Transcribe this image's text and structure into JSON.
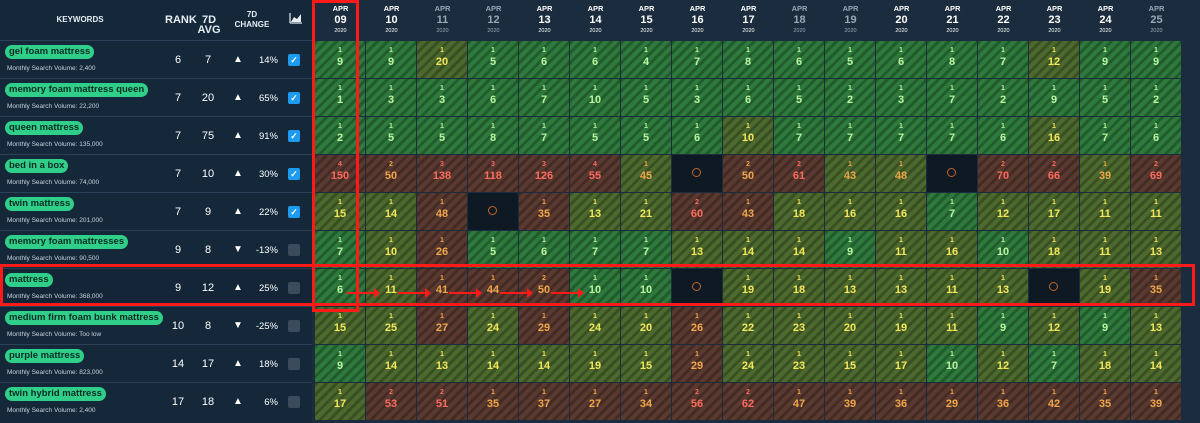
{
  "header": {
    "keywords": "KEYWORDS",
    "rank": "RANK",
    "avg": "7D AVG",
    "change": "7D CHANGE",
    "chart_icon": "chart-icon"
  },
  "msv_prefix": "Monthly Search Volume: ",
  "dates": [
    {
      "mo": "APR",
      "day": "09",
      "yr": "2020",
      "weekend": false
    },
    {
      "mo": "APR",
      "day": "10",
      "yr": "2020",
      "weekend": false
    },
    {
      "mo": "APR",
      "day": "11",
      "yr": "2020",
      "weekend": true
    },
    {
      "mo": "APR",
      "day": "12",
      "yr": "2020",
      "weekend": true
    },
    {
      "mo": "APR",
      "day": "13",
      "yr": "2020",
      "weekend": false
    },
    {
      "mo": "APR",
      "day": "14",
      "yr": "2020",
      "weekend": false
    },
    {
      "mo": "APR",
      "day": "15",
      "yr": "2020",
      "weekend": false
    },
    {
      "mo": "APR",
      "day": "16",
      "yr": "2020",
      "weekend": false
    },
    {
      "mo": "APR",
      "day": "17",
      "yr": "2020",
      "weekend": false
    },
    {
      "mo": "APR",
      "day": "18",
      "yr": "2020",
      "weekend": true
    },
    {
      "mo": "APR",
      "day": "19",
      "yr": "2020",
      "weekend": true
    },
    {
      "mo": "APR",
      "day": "20",
      "yr": "2020",
      "weekend": false
    },
    {
      "mo": "APR",
      "day": "21",
      "yr": "2020",
      "weekend": false
    },
    {
      "mo": "APR",
      "day": "22",
      "yr": "2020",
      "weekend": false
    },
    {
      "mo": "APR",
      "day": "23",
      "yr": "2020",
      "weekend": false
    },
    {
      "mo": "APR",
      "day": "24",
      "yr": "2020",
      "weekend": false
    },
    {
      "mo": "APR",
      "day": "25",
      "yr": "2020",
      "weekend": true
    }
  ],
  "keywords": [
    {
      "name": "gel foam mattress",
      "msv": "2,400",
      "rank": "6",
      "avg": "7",
      "dir": "up",
      "pct": "14%",
      "checked": true,
      "cells": [
        [
          "1",
          "9",
          "g",
          "g"
        ],
        [
          "1",
          "9",
          "g",
          "g"
        ],
        [
          "1",
          "20",
          "o",
          "y"
        ],
        [
          "1",
          "5",
          "g",
          "g"
        ],
        [
          "1",
          "6",
          "g",
          "g"
        ],
        [
          "1",
          "6",
          "g",
          "g"
        ],
        [
          "1",
          "4",
          "g",
          "g"
        ],
        [
          "1",
          "7",
          "g",
          "g"
        ],
        [
          "1",
          "8",
          "g",
          "g"
        ],
        [
          "1",
          "6",
          "g",
          "g"
        ],
        [
          "1",
          "5",
          "g",
          "g"
        ],
        [
          "1",
          "6",
          "g",
          "g"
        ],
        [
          "1",
          "8",
          "g",
          "g"
        ],
        [
          "1",
          "7",
          "g",
          "g"
        ],
        [
          "1",
          "12",
          "o",
          "y"
        ],
        [
          "1",
          "9",
          "g",
          "g"
        ],
        [
          "1",
          "9",
          "g",
          "g"
        ]
      ]
    },
    {
      "name": "memory foam mattress queen",
      "msv": "22,200",
      "rank": "7",
      "avg": "20",
      "dir": "up",
      "pct": "65%",
      "checked": true,
      "cells": [
        [
          "1",
          "1",
          "g",
          "g"
        ],
        [
          "1",
          "3",
          "g",
          "g"
        ],
        [
          "1",
          "3",
          "g",
          "g"
        ],
        [
          "1",
          "6",
          "g",
          "g"
        ],
        [
          "1",
          "7",
          "g",
          "g"
        ],
        [
          "1",
          "10",
          "g",
          "g"
        ],
        [
          "1",
          "5",
          "g",
          "g"
        ],
        [
          "1",
          "3",
          "g",
          "g"
        ],
        [
          "1",
          "6",
          "g",
          "g"
        ],
        [
          "1",
          "5",
          "g",
          "g"
        ],
        [
          "1",
          "2",
          "g",
          "g"
        ],
        [
          "1",
          "3",
          "g",
          "g"
        ],
        [
          "1",
          "7",
          "g",
          "g"
        ],
        [
          "1",
          "2",
          "g",
          "g"
        ],
        [
          "1",
          "9",
          "g",
          "g"
        ],
        [
          "1",
          "5",
          "g",
          "g"
        ],
        [
          "1",
          "2",
          "g",
          "g"
        ]
      ]
    },
    {
      "name": "queen mattress",
      "msv": "135,000",
      "rank": "7",
      "avg": "75",
      "dir": "up",
      "pct": "91%",
      "checked": true,
      "cells": [
        [
          "1",
          "2",
          "g",
          "g"
        ],
        [
          "1",
          "5",
          "g",
          "g"
        ],
        [
          "1",
          "5",
          "g",
          "g"
        ],
        [
          "1",
          "8",
          "g",
          "g"
        ],
        [
          "1",
          "7",
          "g",
          "g"
        ],
        [
          "1",
          "5",
          "g",
          "g"
        ],
        [
          "1",
          "5",
          "g",
          "g"
        ],
        [
          "1",
          "6",
          "g",
          "g"
        ],
        [
          "1",
          "10",
          "o",
          "y"
        ],
        [
          "1",
          "7",
          "g",
          "g"
        ],
        [
          "1",
          "7",
          "g",
          "g"
        ],
        [
          "1",
          "7",
          "g",
          "g"
        ],
        [
          "1",
          "7",
          "g",
          "g"
        ],
        [
          "1",
          "6",
          "g",
          "g"
        ],
        [
          "1",
          "16",
          "o",
          "y"
        ],
        [
          "1",
          "7",
          "g",
          "g"
        ],
        [
          "1",
          "6",
          "g",
          "g"
        ]
      ]
    },
    {
      "name": "bed in a box",
      "msv": "74,000",
      "rank": "7",
      "avg": "10",
      "dir": "up",
      "pct": "30%",
      "checked": true,
      "cells": [
        [
          "4",
          "150",
          "r",
          "r"
        ],
        [
          "2",
          "50",
          "r",
          "o"
        ],
        [
          "3",
          "138",
          "r",
          "r"
        ],
        [
          "3",
          "118",
          "r",
          "r"
        ],
        [
          "3",
          "126",
          "r",
          "r"
        ],
        [
          "4",
          "55",
          "r",
          "r"
        ],
        [
          "1",
          "45",
          "o",
          "o"
        ],
        [
          "",
          "",
          "n",
          "n"
        ],
        [
          "2",
          "50",
          "r",
          "o"
        ],
        [
          "2",
          "61",
          "r",
          "r"
        ],
        [
          "1",
          "43",
          "o",
          "o"
        ],
        [
          "1",
          "48",
          "o",
          "o"
        ],
        [
          "",
          "",
          "n",
          "n"
        ],
        [
          "2",
          "70",
          "r",
          "r"
        ],
        [
          "2",
          "66",
          "r",
          "r"
        ],
        [
          "1",
          "39",
          "o",
          "o"
        ],
        [
          "2",
          "69",
          "r",
          "r"
        ]
      ]
    },
    {
      "name": "twin mattress",
      "msv": "201,000",
      "rank": "7",
      "avg": "9",
      "dir": "up",
      "pct": "22%",
      "checked": true,
      "cells": [
        [
          "1",
          "15",
          "o",
          "y"
        ],
        [
          "1",
          "14",
          "o",
          "y"
        ],
        [
          "1",
          "48",
          "r",
          "o"
        ],
        [
          "",
          "",
          "n",
          "n"
        ],
        [
          "1",
          "35",
          "r",
          "o"
        ],
        [
          "1",
          "13",
          "o",
          "y"
        ],
        [
          "1",
          "21",
          "o",
          "y"
        ],
        [
          "2",
          "60",
          "r",
          "r"
        ],
        [
          "1",
          "43",
          "r",
          "o"
        ],
        [
          "1",
          "18",
          "o",
          "y"
        ],
        [
          "1",
          "16",
          "o",
          "y"
        ],
        [
          "1",
          "16",
          "o",
          "y"
        ],
        [
          "1",
          "7",
          "g",
          "g"
        ],
        [
          "1",
          "12",
          "o",
          "y"
        ],
        [
          "1",
          "17",
          "o",
          "y"
        ],
        [
          "1",
          "11",
          "o",
          "y"
        ],
        [
          "1",
          "11",
          "o",
          "y"
        ]
      ]
    },
    {
      "name": "memory foam mattresses",
      "msv": "90,500",
      "rank": "9",
      "avg": "8",
      "dir": "down",
      "pct": "-13%",
      "checked": false,
      "cells": [
        [
          "1",
          "7",
          "g",
          "g"
        ],
        [
          "1",
          "10",
          "o",
          "y"
        ],
        [
          "1",
          "26",
          "r",
          "o"
        ],
        [
          "1",
          "5",
          "g",
          "g"
        ],
        [
          "1",
          "6",
          "g",
          "g"
        ],
        [
          "1",
          "7",
          "g",
          "g"
        ],
        [
          "1",
          "7",
          "g",
          "g"
        ],
        [
          "1",
          "13",
          "o",
          "y"
        ],
        [
          "1",
          "14",
          "o",
          "y"
        ],
        [
          "1",
          "14",
          "o",
          "y"
        ],
        [
          "1",
          "9",
          "g",
          "g"
        ],
        [
          "1",
          "11",
          "o",
          "y"
        ],
        [
          "1",
          "16",
          "o",
          "y"
        ],
        [
          "1",
          "10",
          "g",
          "g"
        ],
        [
          "1",
          "18",
          "o",
          "y"
        ],
        [
          "1",
          "11",
          "o",
          "y"
        ],
        [
          "1",
          "13",
          "o",
          "y"
        ]
      ]
    },
    {
      "name": "mattress",
      "msv": "368,000",
      "rank": "9",
      "avg": "12",
      "dir": "up",
      "pct": "25%",
      "checked": false,
      "cells": [
        [
          "1",
          "6",
          "g",
          "g"
        ],
        [
          "1",
          "11",
          "o",
          "y"
        ],
        [
          "1",
          "41",
          "r",
          "o"
        ],
        [
          "1",
          "44",
          "r",
          "o"
        ],
        [
          "2",
          "50",
          "r",
          "o"
        ],
        [
          "1",
          "10",
          "g",
          "g"
        ],
        [
          "1",
          "10",
          "g",
          "g"
        ],
        [
          "",
          "",
          "n",
          "n"
        ],
        [
          "1",
          "19",
          "o",
          "y"
        ],
        [
          "1",
          "18",
          "o",
          "y"
        ],
        [
          "1",
          "13",
          "o",
          "y"
        ],
        [
          "1",
          "13",
          "o",
          "y"
        ],
        [
          "1",
          "11",
          "o",
          "y"
        ],
        [
          "1",
          "13",
          "o",
          "y"
        ],
        [
          "",
          "",
          "n",
          "n"
        ],
        [
          "1",
          "19",
          "o",
          "y"
        ],
        [
          "1",
          "35",
          "r",
          "o"
        ]
      ]
    },
    {
      "name": "medium firm foam bunk mattress",
      "msv": "Too low",
      "rank": "10",
      "avg": "8",
      "dir": "down",
      "pct": "-25%",
      "checked": false,
      "cells": [
        [
          "1",
          "15",
          "o",
          "y"
        ],
        [
          "1",
          "25",
          "o",
          "y"
        ],
        [
          "1",
          "27",
          "r",
          "o"
        ],
        [
          "1",
          "24",
          "o",
          "y"
        ],
        [
          "1",
          "29",
          "r",
          "o"
        ],
        [
          "1",
          "24",
          "o",
          "y"
        ],
        [
          "1",
          "20",
          "o",
          "y"
        ],
        [
          "1",
          "26",
          "r",
          "o"
        ],
        [
          "1",
          "22",
          "o",
          "y"
        ],
        [
          "1",
          "23",
          "o",
          "y"
        ],
        [
          "1",
          "20",
          "o",
          "y"
        ],
        [
          "1",
          "19",
          "o",
          "y"
        ],
        [
          "1",
          "11",
          "o",
          "y"
        ],
        [
          "1",
          "9",
          "g",
          "g"
        ],
        [
          "1",
          "12",
          "o",
          "y"
        ],
        [
          "1",
          "9",
          "g",
          "g"
        ],
        [
          "1",
          "13",
          "o",
          "y"
        ]
      ]
    },
    {
      "name": "purple mattress",
      "msv": "823,000",
      "rank": "14",
      "avg": "17",
      "dir": "up",
      "pct": "18%",
      "checked": false,
      "cells": [
        [
          "1",
          "9",
          "g",
          "g"
        ],
        [
          "1",
          "14",
          "o",
          "y"
        ],
        [
          "1",
          "13",
          "o",
          "y"
        ],
        [
          "1",
          "14",
          "o",
          "y"
        ],
        [
          "1",
          "14",
          "o",
          "y"
        ],
        [
          "1",
          "19",
          "o",
          "y"
        ],
        [
          "1",
          "15",
          "o",
          "y"
        ],
        [
          "1",
          "29",
          "r",
          "o"
        ],
        [
          "1",
          "24",
          "o",
          "y"
        ],
        [
          "1",
          "23",
          "o",
          "y"
        ],
        [
          "1",
          "15",
          "o",
          "y"
        ],
        [
          "1",
          "17",
          "o",
          "y"
        ],
        [
          "1",
          "10",
          "g",
          "g"
        ],
        [
          "1",
          "12",
          "o",
          "y"
        ],
        [
          "1",
          "7",
          "g",
          "g"
        ],
        [
          "1",
          "18",
          "o",
          "y"
        ],
        [
          "1",
          "14",
          "o",
          "y"
        ]
      ]
    },
    {
      "name": "twin hybrid mattress",
      "msv": "2,400",
      "rank": "17",
      "avg": "18",
      "dir": "up",
      "pct": "6%",
      "checked": false,
      "cells": [
        [
          "1",
          "17",
          "o",
          "y"
        ],
        [
          "2",
          "53",
          "r",
          "r"
        ],
        [
          "2",
          "51",
          "r",
          "r"
        ],
        [
          "1",
          "35",
          "r",
          "o"
        ],
        [
          "1",
          "37",
          "r",
          "o"
        ],
        [
          "1",
          "27",
          "r",
          "o"
        ],
        [
          "1",
          "34",
          "r",
          "o"
        ],
        [
          "2",
          "56",
          "r",
          "r"
        ],
        [
          "2",
          "62",
          "r",
          "r"
        ],
        [
          "1",
          "47",
          "r",
          "o"
        ],
        [
          "1",
          "39",
          "r",
          "o"
        ],
        [
          "1",
          "36",
          "r",
          "o"
        ],
        [
          "1",
          "29",
          "r",
          "o"
        ],
        [
          "1",
          "36",
          "r",
          "o"
        ],
        [
          "1",
          "42",
          "r",
          "o"
        ],
        [
          "1",
          "35",
          "r",
          "o"
        ],
        [
          "1",
          "39",
          "r",
          "o"
        ]
      ]
    }
  ]
}
